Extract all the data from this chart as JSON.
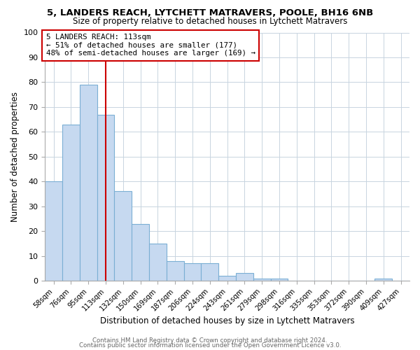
{
  "title1": "5, LANDERS REACH, LYTCHETT MATRAVERS, POOLE, BH16 6NB",
  "title2": "Size of property relative to detached houses in Lytchett Matravers",
  "xlabel": "Distribution of detached houses by size in Lytchett Matravers",
  "ylabel": "Number of detached properties",
  "bin_labels": [
    "58sqm",
    "76sqm",
    "95sqm",
    "113sqm",
    "132sqm",
    "150sqm",
    "169sqm",
    "187sqm",
    "206sqm",
    "224sqm",
    "243sqm",
    "261sqm",
    "279sqm",
    "298sqm",
    "316sqm",
    "335sqm",
    "353sqm",
    "372sqm",
    "390sqm",
    "409sqm",
    "427sqm"
  ],
  "bar_heights": [
    40,
    63,
    79,
    67,
    36,
    23,
    15,
    8,
    7,
    7,
    2,
    3,
    1,
    1,
    0,
    0,
    0,
    0,
    0,
    1,
    0
  ],
  "bar_color": "#c6d9f0",
  "bar_edge_color": "#7bafd4",
  "vline_x": 3,
  "vline_color": "#cc0000",
  "annotation_line1": "5 LANDERS REACH: 113sqm",
  "annotation_line2": "← 51% of detached houses are smaller (177)",
  "annotation_line3": "48% of semi-detached houses are larger (169) →",
  "annotation_box_color": "#ffffff",
  "annotation_box_edge": "#cc0000",
  "ylim": [
    0,
    100
  ],
  "yticks": [
    0,
    10,
    20,
    30,
    40,
    50,
    60,
    70,
    80,
    90,
    100
  ],
  "footer1": "Contains HM Land Registry data © Crown copyright and database right 2024.",
  "footer2": "Contains public sector information licensed under the Open Government Licence v3.0.",
  "bg_color": "#ffffff",
  "grid_color": "#c8d4e0"
}
